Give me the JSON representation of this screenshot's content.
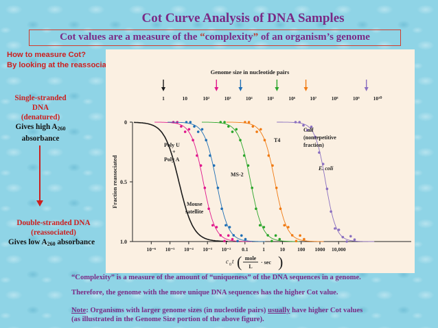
{
  "slide": {
    "title": "Cot Curve Analysis of DNA Samples",
    "subtitle": {
      "part1": "Cot values are a measure of the ",
      "quote_open": "“",
      "word": "complexity",
      "quote_close": "”",
      "part2": " of an organism’s genome"
    },
    "howto": {
      "line1": "How to measure Cot?",
      "line2": "By looking at the reassociation kinetics of DNA"
    },
    "single_stranded": {
      "line1": "Single-stranded",
      "line2": "DNA",
      "line3": "(denatured)",
      "absorb_pre": "Gives high A",
      "absorb_sub": "260",
      "absorb_post": "absorbance"
    },
    "double_stranded": {
      "line1": "Double-stranded DNA",
      "line2": "(reassociated)",
      "absorb_pre": "Gives low A",
      "absorb_sub": "260",
      "absorb_post": " absorbance"
    },
    "bottom": {
      "line1": "“Complexity” is a measure of the amount of “uniqueness” of the DNA sequences in a genome.",
      "line2": "Therefore, the genome with the more unique DNA sequences has the higher Cot value.",
      "note_label": "Note",
      "note_a": ": Organisms with larger genome sizes (in nucleotide pairs) ",
      "note_usually": "usually",
      "note_b": " have higher Cot values",
      "line4": "(as illustrated in the Genome Size portion of the above figure)."
    },
    "colors": {
      "title": "#7a2a85",
      "alert_red": "#cc1f1f",
      "poly": "#1a1a1a",
      "mouse": "#e0168c",
      "ms2": "#1f6fb5",
      "t4": "#2aa52a",
      "ecoli": "#f07a12",
      "calf": "#8a6fc0"
    }
  },
  "chart_data": {
    "type": "line",
    "title": "",
    "xlabel_pre": "c",
    "xlabel_sub": "0",
    "xlabel_t": "t",
    "xlabel_frac_num": "mole",
    "xlabel_frac_den": "L",
    "xlabel_post": "· sec",
    "ylabel": "Fraction reassociated",
    "x_scale": "log",
    "xlim": [
      1e-07,
      100000
    ],
    "ylim": [
      0,
      1.0
    ],
    "y_ticks": [
      "0",
      "0.5",
      "1.0"
    ],
    "x_tick_labels": [
      "10⁻⁶",
      "10⁻⁵",
      "10⁻⁴",
      "10⁻³",
      "10⁻²",
      "0.1",
      "1",
      "10",
      "100",
      "1000",
      "10,000"
    ],
    "genome_axis": {
      "title": "Genome size in nucleotide pairs",
      "tick_labels": [
        "1",
        "10",
        "10²",
        "10³",
        "10⁴",
        "10⁵",
        "10⁶",
        "10⁷",
        "10⁸",
        "10⁹",
        "10¹⁰"
      ]
    },
    "series": [
      {
        "label_line1": "Poly U",
        "label_plus": "+",
        "label_line2": "Poly A",
        "half_cot": 3e-05,
        "genome_size": 1
      },
      {
        "label_line1": "Mouse",
        "label_line2": "satellite",
        "half_cot": 0.0006,
        "genome_size": 300
      },
      {
        "label_line1": "MS-2",
        "half_cot": 0.003,
        "genome_size": 4000
      },
      {
        "label_line1": "T4",
        "half_cot": 0.2,
        "genome_size": 200000
      },
      {
        "label_line1": "E. coli",
        "half_cot": 4,
        "genome_size": 4500000
      },
      {
        "label_line1": "Calf",
        "label_line2": "(nonrepetitive",
        "label_line3": "fraction)",
        "half_cot": 2000,
        "genome_size": 3000000000
      }
    ]
  }
}
